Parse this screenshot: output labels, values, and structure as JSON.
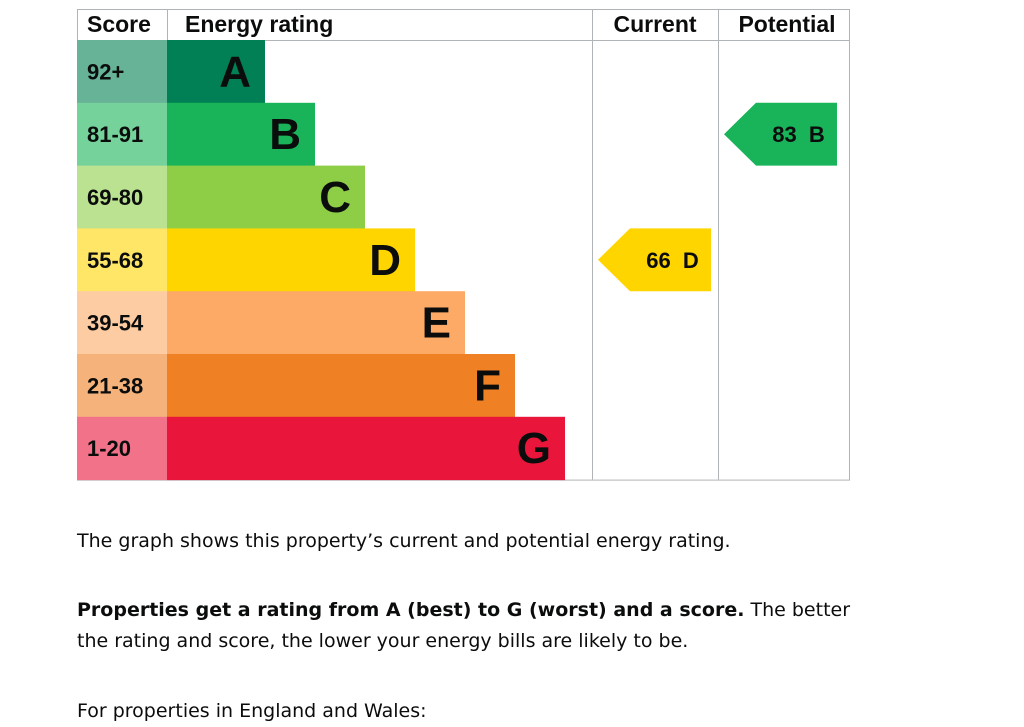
{
  "chart_data": {
    "type": "bar",
    "headers": {
      "score": "Score",
      "rating": "Energy rating",
      "current": "Current",
      "potential": "Potential"
    },
    "bands": [
      {
        "range": "92+",
        "letter": "A",
        "color": "#008054",
        "light": "#66b398"
      },
      {
        "range": "81-91",
        "letter": "B",
        "color": "#19b459",
        "light": "#75d29b"
      },
      {
        "range": "69-80",
        "letter": "C",
        "color": "#8dce46",
        "light": "#bbe290"
      },
      {
        "range": "55-68",
        "letter": "D",
        "color": "#ffd500",
        "light": "#ffe666"
      },
      {
        "range": "39-54",
        "letter": "E",
        "color": "#fcaa65",
        "light": "#fdcca3"
      },
      {
        "range": "21-38",
        "letter": "F",
        "color": "#ef8023",
        "light": "#f5b37b"
      },
      {
        "range": "1-20",
        "letter": "G",
        "color": "#e9153b",
        "light": "#f27389"
      }
    ],
    "current": {
      "score": 66,
      "letter": "D",
      "label": "66  D",
      "color": "#ffd500"
    },
    "potential": {
      "score": 83,
      "letter": "B",
      "label": "83  B",
      "color": "#19b459"
    }
  },
  "text": {
    "p1": "The graph shows this property’s current and potential energy rating.",
    "p2_bold": "Properties get a rating from A (best) to G (worst) and a score.",
    "p2_rest": " The better the rating and score, the lower your energy bills are likely to be.",
    "p3": "For properties in England and Wales:"
  }
}
